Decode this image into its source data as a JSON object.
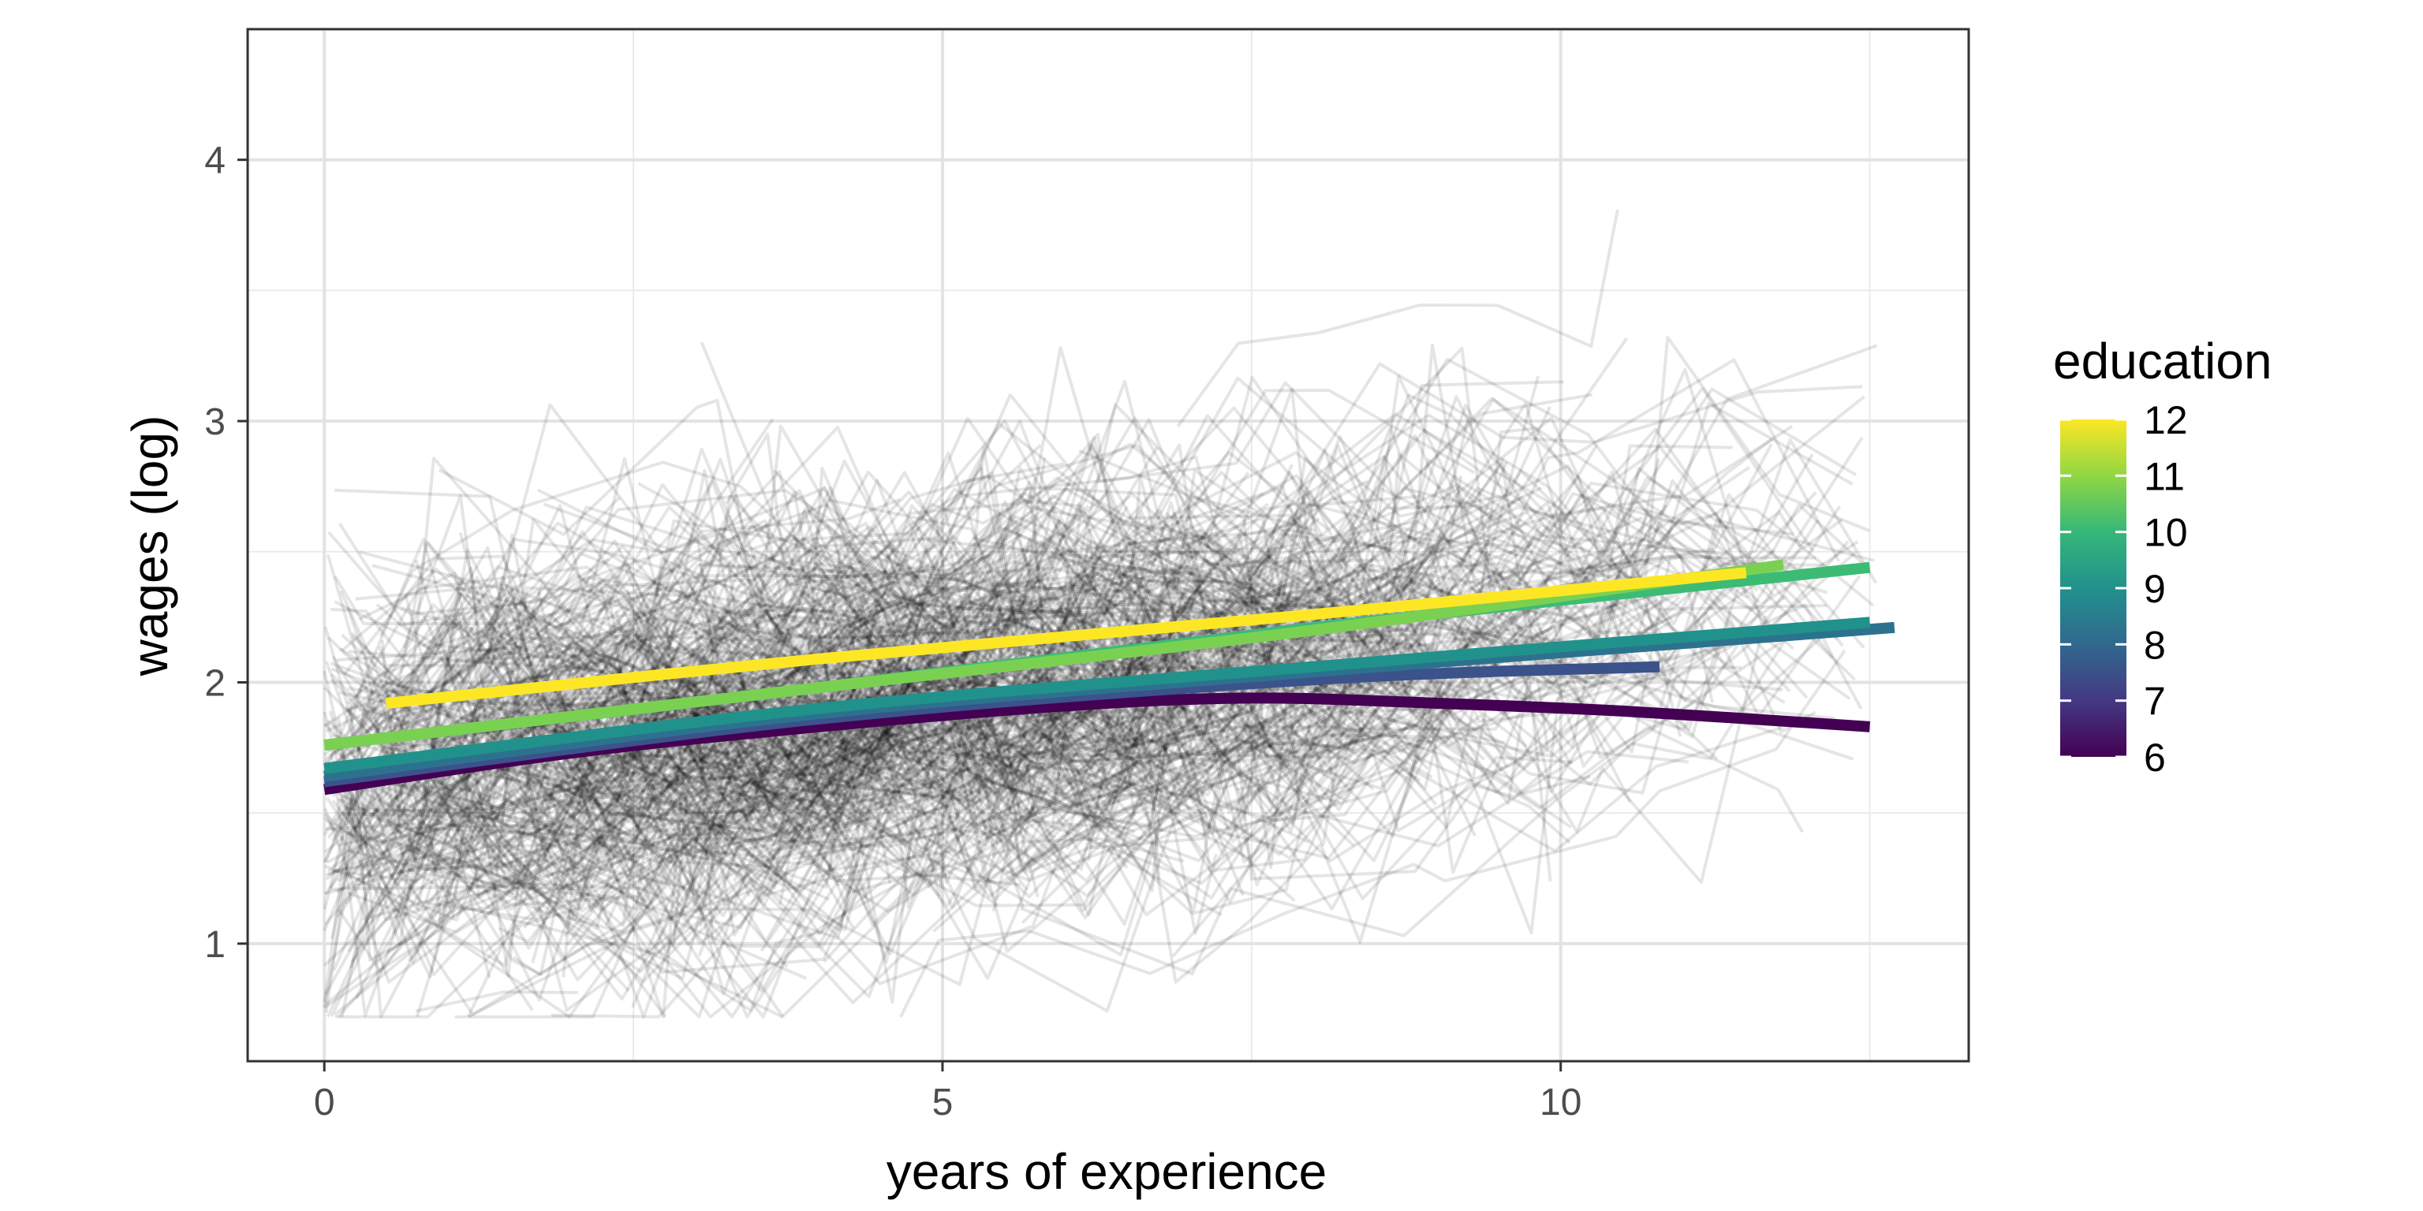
{
  "chart_data": {
    "type": "line",
    "xlabel": "years of experience",
    "ylabel": "wages (log)",
    "xlim": [
      -0.62,
      13.3
    ],
    "ylim": [
      0.55,
      4.5
    ],
    "x_ticks": [
      "0",
      "5",
      "10"
    ],
    "y_ticks": [
      "1",
      "2",
      "3",
      "4"
    ],
    "grid": true,
    "legend": {
      "title": "education",
      "type": "colorbar",
      "position": "right",
      "range": [
        6,
        12
      ],
      "labels": [
        "12",
        "11",
        "10",
        "9",
        "8",
        "7",
        "6"
      ],
      "colors": [
        "#440154",
        "#443983",
        "#31688e",
        "#21918c",
        "#35b779",
        "#90d743",
        "#fde725"
      ]
    },
    "background_trajectories": {
      "description_shown": "many individual wage trajectories drawn in translucent black",
      "color": "#000000",
      "opacity": 0.1
    },
    "series": [
      {
        "education": 6,
        "color": "#440154",
        "x": [
          0,
          2,
          4,
          6,
          7.5,
          9,
          10.5,
          12.5
        ],
        "y": [
          1.59,
          1.73,
          1.83,
          1.91,
          1.94,
          1.92,
          1.89,
          1.83
        ]
      },
      {
        "education": 7,
        "color": "#3b528b",
        "x": [
          0,
          4,
          8,
          10.8
        ],
        "y": [
          1.62,
          1.86,
          2.01,
          2.06
        ]
      },
      {
        "education": 8,
        "color": "#2c728e",
        "x": [
          0,
          4,
          8,
          12.7
        ],
        "y": [
          1.64,
          1.88,
          2.04,
          2.21
        ]
      },
      {
        "education": 9,
        "color": "#21918c",
        "x": [
          0,
          4,
          8,
          12.5
        ],
        "y": [
          1.67,
          1.9,
          2.06,
          2.23
        ]
      },
      {
        "education": 10,
        "color": "#3cbb75",
        "x": [
          0,
          4,
          8,
          12.5
        ],
        "y": [
          1.76,
          1.98,
          2.21,
          2.44
        ]
      },
      {
        "education": 11,
        "color": "#7ad151",
        "x": [
          0,
          4,
          8,
          11.8
        ],
        "y": [
          1.76,
          1.98,
          2.2,
          2.45
        ]
      },
      {
        "education": 12,
        "color": "#fde725",
        "x": [
          0.5,
          4,
          8,
          11.5
        ],
        "y": [
          1.92,
          2.09,
          2.26,
          2.42
        ]
      }
    ]
  }
}
